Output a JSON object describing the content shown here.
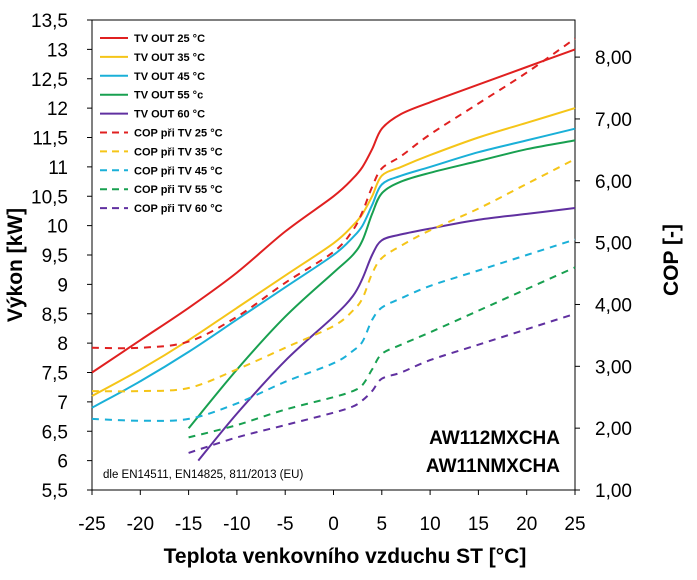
{
  "chart_data": {
    "type": "line",
    "x_axis": {
      "title": "Teplota venkovního vzduchu ST [°C]",
      "range": [
        -25,
        25
      ],
      "ticks": [
        -25,
        -20,
        -15,
        -10,
        -5,
        0,
        5,
        10,
        15,
        20,
        25
      ],
      "tick_labels": [
        "-25",
        "-20",
        "-15",
        "-10",
        "-5",
        "0",
        "5",
        "10",
        "15",
        "20",
        "25"
      ]
    },
    "y_axis_left": {
      "title": "Výkon [kW]",
      "range": [
        5.5,
        13.5
      ],
      "ticks": [
        5.5,
        6,
        6.5,
        7,
        7.5,
        8,
        8.5,
        9,
        9.5,
        10,
        10.5,
        11,
        11.5,
        12,
        12.5,
        13,
        13.5
      ],
      "tick_labels": [
        "5,5",
        "6",
        "6,5",
        "7",
        "7,5",
        "8",
        "8,5",
        "9",
        "9,5",
        "10",
        "10,5",
        "11",
        "11,5",
        "12",
        "12,5",
        "13",
        "13,5"
      ]
    },
    "y_axis_right": {
      "title": "COP [-]",
      "range": [
        1,
        8.6
      ],
      "ticks": [
        1,
        2,
        3,
        4,
        5,
        6,
        7,
        8
      ],
      "tick_labels": [
        "1,00",
        "2,00",
        "3,00",
        "4,00",
        "5,00",
        "6,00",
        "7,00",
        "8,00"
      ]
    },
    "grid": false,
    "legend_position": "top-left",
    "series": [
      {
        "name": "TV OUT 25 °C",
        "axis": "left",
        "style": "solid",
        "color": "#e02020",
        "x": [
          -25,
          -20,
          -15,
          -10,
          -5,
          0,
          2,
          3,
          4,
          5,
          7,
          10,
          15,
          20,
          25
        ],
        "y": [
          7.5,
          8.05,
          8.6,
          9.2,
          9.9,
          10.5,
          10.8,
          11.0,
          11.3,
          11.65,
          11.9,
          12.1,
          12.4,
          12.7,
          13.0
        ]
      },
      {
        "name": "TV OUT 35 °C",
        "axis": "left",
        "style": "solid",
        "color": "#f5c518",
        "x": [
          -25,
          -20,
          -15,
          -10,
          -5,
          0,
          2,
          3,
          4,
          5,
          7,
          10,
          15,
          20,
          25
        ],
        "y": [
          7.1,
          7.55,
          8.05,
          8.6,
          9.15,
          9.7,
          10.0,
          10.2,
          10.5,
          10.85,
          11.0,
          11.2,
          11.5,
          11.75,
          12.0
        ]
      },
      {
        "name": "TV OUT 45 °C",
        "axis": "left",
        "style": "solid",
        "color": "#1ab0d8",
        "x": [
          -25,
          -20,
          -15,
          -10,
          -5,
          0,
          2,
          3,
          4,
          5,
          7,
          10,
          15,
          20,
          25
        ],
        "y": [
          6.9,
          7.35,
          7.85,
          8.4,
          8.95,
          9.5,
          9.8,
          10.0,
          10.35,
          10.7,
          10.85,
          11.0,
          11.25,
          11.45,
          11.65
        ]
      },
      {
        "name": "TV OUT 55 °c",
        "axis": "left",
        "style": "solid",
        "color": "#18a050",
        "x": [
          -15,
          -10,
          -5,
          0,
          2,
          3,
          4,
          5,
          7,
          10,
          15,
          20,
          25
        ],
        "y": [
          6.55,
          7.55,
          8.45,
          9.2,
          9.5,
          9.75,
          10.2,
          10.55,
          10.75,
          10.9,
          11.1,
          11.3,
          11.45
        ]
      },
      {
        "name": "TV OUT 60 °C",
        "axis": "left",
        "style": "solid",
        "color": "#6030a0",
        "x": [
          -14,
          -10,
          -5,
          0,
          2,
          3,
          4,
          5,
          7,
          10,
          15,
          20,
          25
        ],
        "y": [
          6.0,
          6.8,
          7.7,
          8.45,
          8.8,
          9.1,
          9.5,
          9.75,
          9.85,
          9.95,
          10.1,
          10.2,
          10.3
        ]
      },
      {
        "name": "COP při TV 25 °C",
        "axis": "right",
        "style": "dashed",
        "color": "#e02020",
        "x": [
          -25,
          -20,
          -15,
          -10,
          -5,
          0,
          2,
          3,
          4,
          5,
          7,
          10,
          15,
          20,
          25
        ],
        "y": [
          3.3,
          3.3,
          3.4,
          3.8,
          4.35,
          4.85,
          5.2,
          5.5,
          5.9,
          6.2,
          6.4,
          6.75,
          7.25,
          7.75,
          8.3
        ]
      },
      {
        "name": "COP při TV 35 °C",
        "axis": "right",
        "style": "dashed",
        "color": "#f5c518",
        "x": [
          -25,
          -20,
          -15,
          -10,
          -5,
          0,
          2,
          3,
          4,
          5,
          7,
          10,
          15,
          20,
          25
        ],
        "y": [
          2.6,
          2.6,
          2.65,
          2.95,
          3.3,
          3.65,
          3.9,
          4.1,
          4.5,
          4.75,
          4.95,
          5.2,
          5.55,
          5.95,
          6.35
        ]
      },
      {
        "name": "COP při TV 45 °C",
        "axis": "right",
        "style": "dashed",
        "color": "#1ab0d8",
        "x": [
          -25,
          -20,
          -15,
          -10,
          -5,
          0,
          2,
          3,
          4,
          5,
          7,
          10,
          15,
          20,
          25
        ],
        "y": [
          2.15,
          2.12,
          2.15,
          2.4,
          2.75,
          3.05,
          3.25,
          3.4,
          3.75,
          3.95,
          4.1,
          4.3,
          4.55,
          4.8,
          5.05
        ]
      },
      {
        "name": "COP při TV 55 °C",
        "axis": "right",
        "style": "dashed",
        "color": "#18a050",
        "x": [
          -15,
          -10,
          -5,
          0,
          2,
          3,
          4,
          5,
          7,
          10,
          15,
          20,
          25
        ],
        "y": [
          1.85,
          2.05,
          2.3,
          2.5,
          2.6,
          2.7,
          2.95,
          3.2,
          3.35,
          3.55,
          3.9,
          4.25,
          4.6
        ]
      },
      {
        "name": "COP při TV 60 °C",
        "axis": "right",
        "style": "dashed",
        "color": "#6030a0",
        "x": [
          -15,
          -10,
          -5,
          0,
          2,
          3,
          4,
          5,
          7,
          10,
          15,
          20,
          25
        ],
        "y": [
          1.6,
          1.85,
          2.05,
          2.25,
          2.35,
          2.45,
          2.6,
          2.8,
          2.9,
          3.1,
          3.35,
          3.6,
          3.85
        ]
      }
    ],
    "annotations": {
      "model_line_1": "AW112MXCHA",
      "model_line_2": "AW11NMXCHA",
      "note": "dle EN14511, EN14825, 811/2013 (EU)"
    }
  }
}
